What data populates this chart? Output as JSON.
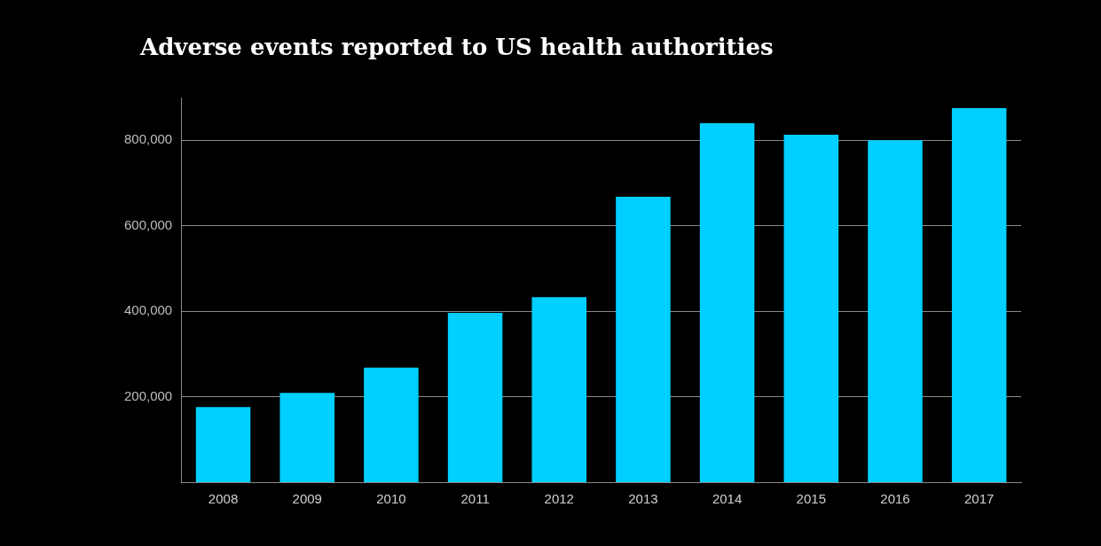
{
  "chart_data": {
    "type": "bar",
    "title": "Adverse events reported to US health authorities",
    "categories": [
      "2008",
      "2009",
      "2010",
      "2011",
      "2012",
      "2013",
      "2014",
      "2015",
      "2016",
      "2017"
    ],
    "values": [
      176000,
      209000,
      268000,
      396000,
      433000,
      668000,
      840000,
      813000,
      800000,
      875000
    ],
    "color": "#00cfff",
    "ylim": [
      0,
      900000
    ],
    "yticks": [
      {
        "value": 200000,
        "label": "200,000"
      },
      {
        "value": 400000,
        "label": "400,000"
      },
      {
        "value": 600000,
        "label": "600,000"
      },
      {
        "value": 800000,
        "label": "800,000"
      }
    ],
    "grid": "y"
  }
}
